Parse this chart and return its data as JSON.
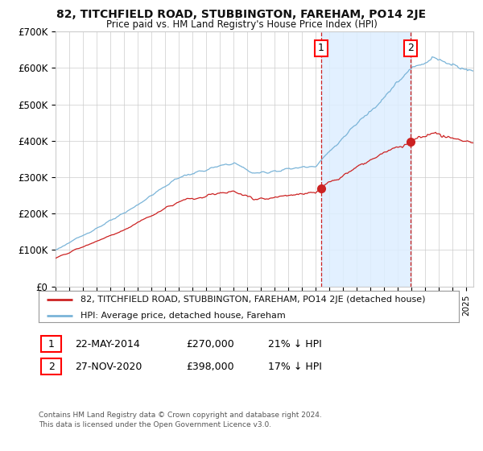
{
  "title": "82, TITCHFIELD ROAD, STUBBINGTON, FAREHAM, PO14 2JE",
  "subtitle": "Price paid vs. HM Land Registry's House Price Index (HPI)",
  "hpi_label": "HPI: Average price, detached house, Fareham",
  "price_label": "82, TITCHFIELD ROAD, STUBBINGTON, FAREHAM, PO14 2JE (detached house)",
  "transaction1": {
    "date": "22-MAY-2014",
    "price": "£270,000",
    "pct": "21% ↓ HPI"
  },
  "transaction2": {
    "date": "27-NOV-2020",
    "price": "£398,000",
    "pct": "17% ↓ HPI"
  },
  "point1_x": 2014.39,
  "point1_y": 270000,
  "point2_x": 2020.91,
  "point2_y": 398000,
  "hpi_color": "#7ab4d8",
  "price_color": "#cc2222",
  "point_color": "#cc2222",
  "shade_color": "#ddeeff",
  "vline_color": "#cc2222",
  "grid_color": "#cccccc",
  "background_color": "#ffffff",
  "footnote1": "Contains HM Land Registry data © Crown copyright and database right 2024.",
  "footnote2": "This data is licensed under the Open Government Licence v3.0.",
  "ylim": [
    0,
    700000
  ],
  "yticks": [
    0,
    100000,
    200000,
    300000,
    400000,
    500000,
    600000,
    700000
  ],
  "ytick_labels": [
    "£0",
    "£100K",
    "£200K",
    "£300K",
    "£400K",
    "£500K",
    "£600K",
    "£700K"
  ],
  "xlim_start": 1995.0,
  "xlim_end": 2025.5
}
